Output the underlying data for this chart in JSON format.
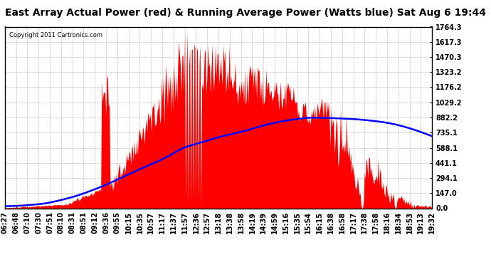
{
  "title": "East Array Actual Power (red) & Running Average Power (Watts blue) Sat Aug 6 19:44",
  "copyright": "Copyright 2011 Cartronics.com",
  "yticks": [
    0.0,
    147.0,
    294.1,
    441.1,
    588.1,
    735.1,
    882.2,
    1029.2,
    1176.2,
    1323.2,
    1470.3,
    1617.3,
    1764.3
  ],
  "ymax": 1764.3,
  "xtick_labels": [
    "06:27",
    "06:48",
    "07:10",
    "07:30",
    "07:51",
    "08:10",
    "08:31",
    "08:51",
    "09:12",
    "09:36",
    "09:55",
    "10:15",
    "10:35",
    "10:57",
    "11:17",
    "11:37",
    "11:57",
    "12:36",
    "12:57",
    "13:18",
    "13:38",
    "13:58",
    "14:19",
    "14:39",
    "14:59",
    "15:16",
    "15:35",
    "15:54",
    "16:15",
    "16:38",
    "16:58",
    "17:17",
    "17:38",
    "17:58",
    "18:16",
    "18:34",
    "18:53",
    "19:13",
    "19:32"
  ],
  "fill_color": "#ff0000",
  "line_color": "#0000ff",
  "background_color": "#ffffff",
  "grid_color": "#aaaaaa",
  "title_fontsize": 10,
  "tick_fontsize": 7,
  "blue_curve_key_points_t": [
    0.0,
    0.08,
    0.15,
    0.22,
    0.3,
    0.38,
    0.42,
    0.46,
    0.5,
    0.56,
    0.62,
    0.68,
    0.72,
    0.8,
    0.88,
    1.0
  ],
  "blue_curve_key_points_v": [
    20,
    40,
    100,
    200,
    350,
    500,
    590,
    640,
    690,
    750,
    820,
    865,
    880,
    870,
    840,
    700
  ]
}
